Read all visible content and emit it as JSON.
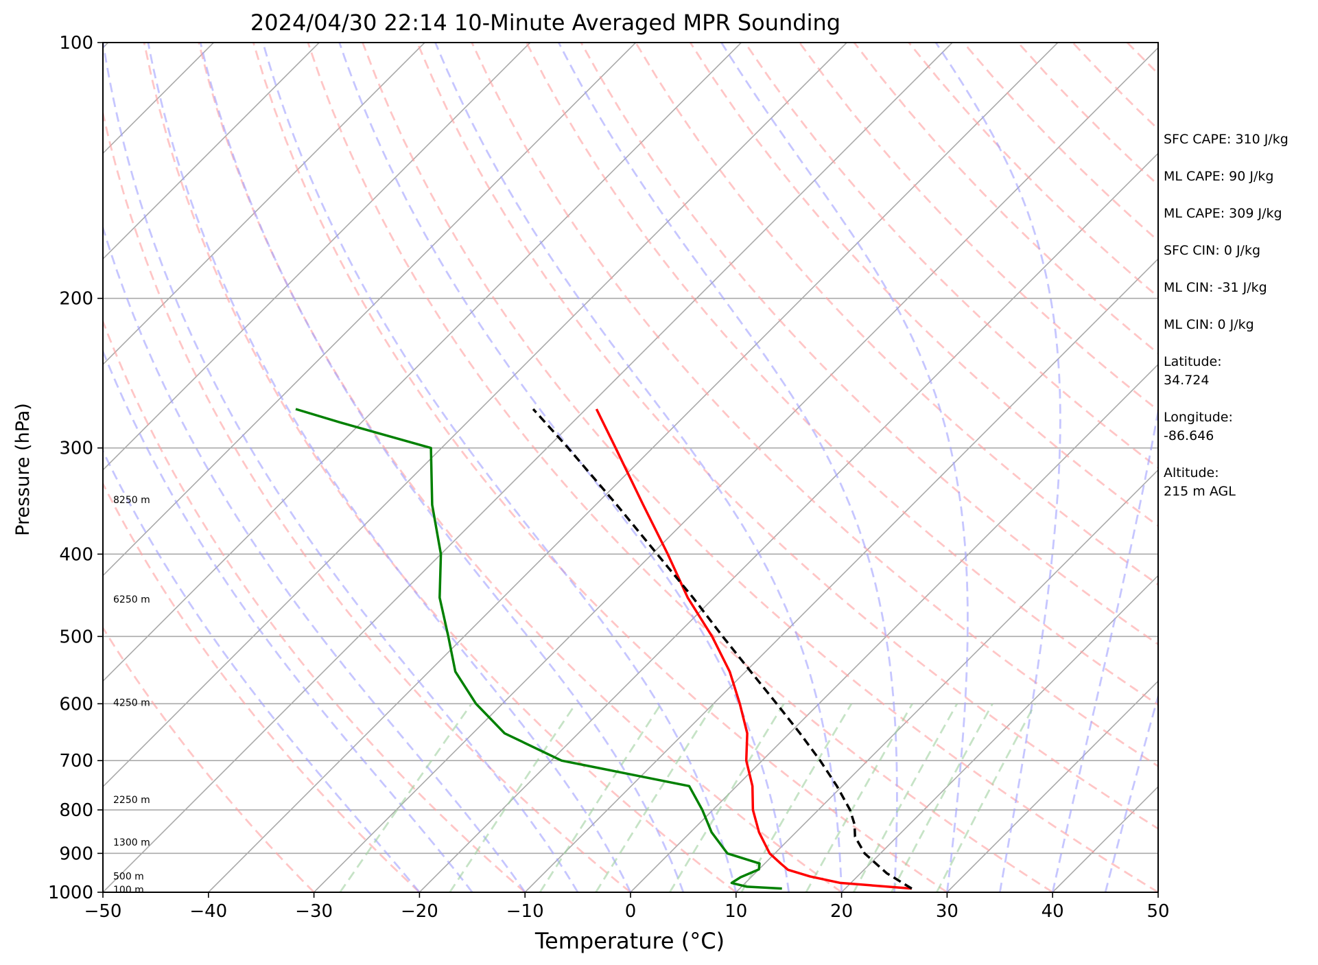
{
  "chart_data": {
    "type": "line",
    "subtype": "skew-t log-p sounding",
    "title": "2024/04/30 22:14 10-Minute Averaged MPR Sounding",
    "xlabel": "Temperature (°C)",
    "ylabel": "Pressure (hPa)",
    "xlim": [
      -50,
      50
    ],
    "ylim": [
      1000,
      100
    ],
    "y_scale": "log",
    "x_ticks": [
      "−50",
      "−40",
      "−30",
      "−20",
      "−10",
      "0",
      "10",
      "20",
      "30",
      "40",
      "50"
    ],
    "x_tick_values": [
      -50,
      -40,
      -30,
      -20,
      -10,
      0,
      10,
      20,
      30,
      40,
      50
    ],
    "y_ticks": [
      "100",
      "200",
      "300",
      "400",
      "500",
      "600",
      "700",
      "800",
      "900",
      "1000"
    ],
    "y_tick_values": [
      100,
      200,
      300,
      400,
      500,
      600,
      700,
      800,
      900,
      1000
    ],
    "grid": true,
    "series": [
      {
        "role": "temperature",
        "color": "#ff0000",
        "style": "solid",
        "points": [
          {
            "p": 990,
            "t": 26.3
          },
          {
            "p": 975,
            "t": 19.0
          },
          {
            "p": 958,
            "t": 15.5
          },
          {
            "p": 941,
            "t": 12.8
          },
          {
            "p": 925,
            "t": 11.5
          },
          {
            "p": 900,
            "t": 9.5
          },
          {
            "p": 850,
            "t": 6.5
          },
          {
            "p": 800,
            "t": 3.8
          },
          {
            "p": 750,
            "t": 1.5
          },
          {
            "p": 700,
            "t": -1.5
          },
          {
            "p": 650,
            "t": -4.0
          },
          {
            "p": 600,
            "t": -7.5
          },
          {
            "p": 550,
            "t": -11.5
          },
          {
            "p": 500,
            "t": -16.5
          },
          {
            "p": 450,
            "t": -22.5
          },
          {
            "p": 400,
            "t": -28.5
          },
          {
            "p": 350,
            "t": -35.5
          },
          {
            "p": 300,
            "t": -43.5
          },
          {
            "p": 270,
            "t": -49.0
          }
        ]
      },
      {
        "role": "dewpoint",
        "color": "#008000",
        "style": "solid",
        "points": [
          {
            "p": 990,
            "t": 14.0
          },
          {
            "p": 985,
            "t": 10.5
          },
          {
            "p": 975,
            "t": 8.7
          },
          {
            "p": 960,
            "t": 9.0
          },
          {
            "p": 940,
            "t": 10.0
          },
          {
            "p": 925,
            "t": 9.5
          },
          {
            "p": 900,
            "t": 5.5
          },
          {
            "p": 850,
            "t": 2.0
          },
          {
            "p": 800,
            "t": -1.0
          },
          {
            "p": 750,
            "t": -4.5
          },
          {
            "p": 700,
            "t": -19.0
          },
          {
            "p": 650,
            "t": -27.0
          },
          {
            "p": 600,
            "t": -32.5
          },
          {
            "p": 550,
            "t": -37.5
          },
          {
            "p": 500,
            "t": -41.5
          },
          {
            "p": 450,
            "t": -46.0
          },
          {
            "p": 400,
            "t": -50.0
          },
          {
            "p": 350,
            "t": -55.5
          },
          {
            "p": 300,
            "t": -61.0
          },
          {
            "p": 280,
            "t": -72.0
          },
          {
            "p": 270,
            "t": -77.5
          }
        ]
      },
      {
        "role": "parcel path",
        "color": "#000000",
        "style": "dashed",
        "points": [
          {
            "p": 990,
            "t": 26.3
          },
          {
            "p": 950,
            "t": 22.5
          },
          {
            "p": 900,
            "t": 18.5
          },
          {
            "p": 860,
            "t": 16.0
          },
          {
            "p": 832,
            "t": 14.8
          },
          {
            "p": 800,
            "t": 13.0
          },
          {
            "p": 750,
            "t": 9.5
          },
          {
            "p": 700,
            "t": 5.5
          },
          {
            "p": 650,
            "t": 1.0
          },
          {
            "p": 600,
            "t": -4.0
          },
          {
            "p": 550,
            "t": -9.5
          },
          {
            "p": 500,
            "t": -15.5
          },
          {
            "p": 450,
            "t": -22.0
          },
          {
            "p": 400,
            "t": -29.5
          },
          {
            "p": 350,
            "t": -38.0
          },
          {
            "p": 300,
            "t": -48.0
          },
          {
            "p": 270,
            "t": -55.0
          }
        ]
      }
    ],
    "reference_lines": {
      "isotherms": {
        "color": "#a9a9a9",
        "style": "solid"
      },
      "dry_adiabats": {
        "color": "#ffa0a0",
        "style": "dashed"
      },
      "moist_adiabats": {
        "color": "#a0a0ff",
        "style": "dashed"
      },
      "mixing_ratio_lines": {
        "color": "#a0d0a0",
        "style": "dashed"
      }
    },
    "height_labels": [
      {
        "text": "8250 m",
        "p": 345
      },
      {
        "text": "6250 m",
        "p": 452
      },
      {
        "text": "4250 m",
        "p": 598
      },
      {
        "text": "2250 m",
        "p": 778
      },
      {
        "text": "1300 m",
        "p": 873
      },
      {
        "text": "500 m",
        "p": 957
      },
      {
        "text": "100 m",
        "p": 993
      }
    ]
  },
  "stats": [
    "SFC CAPE: 310 J/kg",
    "ML CAPE: 90 J/kg",
    "ML CAPE: 309 J/kg",
    "SFC CIN: 0 J/kg",
    "ML CIN: -31 J/kg",
    "ML CIN: 0 J/kg",
    "Latitude:\n34.724",
    "Longitude:\n-86.646",
    "Altitude:\n215 m AGL"
  ]
}
